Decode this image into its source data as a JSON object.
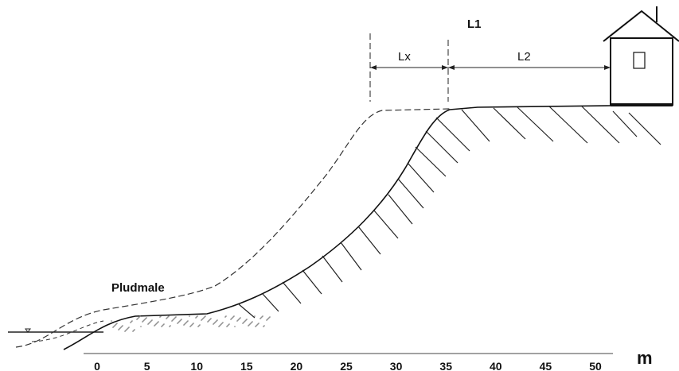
{
  "labels": {
    "l1": "L1",
    "lx": "Lx",
    "l2": "L2",
    "beach": "Pludmale"
  },
  "scale": {
    "ticks": [
      0,
      5,
      10,
      15,
      20,
      25,
      30,
      35,
      40,
      45,
      50
    ],
    "unit": "m"
  }
}
